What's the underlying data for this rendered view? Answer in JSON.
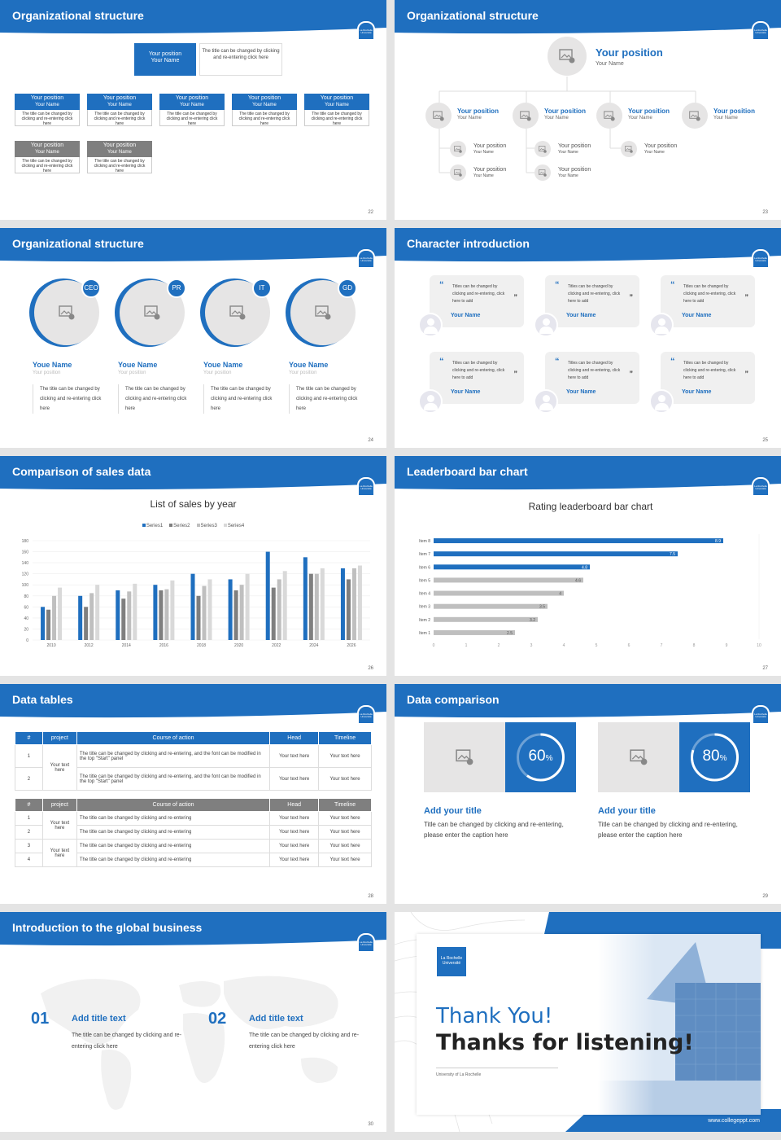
{
  "common": {
    "logo_text": "La Rochelle Université",
    "placeholder_icon": "image-placeholder-icon"
  },
  "s22": {
    "title": "Organizational structure",
    "page": "22",
    "top": {
      "position": "Your position",
      "name": "Your Name",
      "desc": "The title can be changed by clicking and re-entering click here"
    },
    "row1": [
      {
        "position": "Your position",
        "name": "Your Name",
        "desc": "The title can be changed by clicking and re-entering click here"
      },
      {
        "position": "Your position",
        "name": "Your Name",
        "desc": "The title can be changed by clicking and re-entering click here"
      },
      {
        "position": "Your position",
        "name": "Your Name",
        "desc": "The title can be changed by clicking and re-entering click here"
      },
      {
        "position": "Your position",
        "name": "Your Name",
        "desc": "The title can be changed by clicking and re-entering click here"
      },
      {
        "position": "Your position",
        "name": "Your Name",
        "desc": "The title can be changed by clicking and re-entering click here"
      }
    ],
    "row2": [
      {
        "position": "Your position",
        "name": "Your Name",
        "desc": "The title can be changed by clicking and re-entering click here"
      },
      {
        "position": "Your position",
        "name": "Your Name",
        "desc": "The title can be changed by clicking and re-entering click here"
      }
    ]
  },
  "s23": {
    "title": "Organizational structure",
    "page": "23",
    "top": {
      "position": "Your position",
      "name": "Your Name"
    },
    "level2": [
      {
        "position": "Your position",
        "name": "Your Name"
      },
      {
        "position": "Your position",
        "name": "Your Name"
      },
      {
        "position": "Your position",
        "name": "Your Name"
      },
      {
        "position": "Your position",
        "name": "Your Name"
      }
    ],
    "level3": [
      {
        "position": "Your position",
        "name": "Your Name"
      },
      {
        "position": "Your position",
        "name": "Your Name"
      },
      {
        "position": "Your position",
        "name": "Your Name"
      },
      {
        "position": "Your position",
        "name": "Your Name"
      },
      {
        "position": "Your position",
        "name": "Your Name"
      }
    ]
  },
  "s24": {
    "title": "Organizational structure",
    "page": "24",
    "members": [
      {
        "badge": "CEO",
        "name": "Youe Name",
        "position": "Your position",
        "desc": "The title can be changed by clicking and re-entering click here"
      },
      {
        "badge": "PR",
        "name": "Youe Name",
        "position": "Your position",
        "desc": "The title can be changed by clicking and re-entering click here"
      },
      {
        "badge": "IT",
        "name": "Youe Name",
        "position": "Your position",
        "desc": "The title can be changed by clicking and re-entering click here"
      },
      {
        "badge": "GD",
        "name": "Youe Name",
        "position": "Your position",
        "desc": "The title can be changed by clicking and re-entering click here"
      }
    ]
  },
  "s25": {
    "title": "Character introduction",
    "page": "25",
    "open_quote": "“",
    "close_quote": "”",
    "cards": [
      {
        "text": "Titles can be changed by clicking and re-entering, click here to add",
        "name": "Your Name"
      },
      {
        "text": "Titles can be changed by clicking and re-entering, click here to add",
        "name": "Your Name"
      },
      {
        "text": "Titles can be changed by clicking and re-entering, click here to add",
        "name": "Your Name"
      },
      {
        "text": "Titles can be changed by clicking and re-entering, click here to add",
        "name": "Your Name"
      },
      {
        "text": "Titles can be changed by clicking and re-entering, click here to add",
        "name": "Your Name"
      },
      {
        "text": "Titles can be changed by clicking and re-entering, click here to add",
        "name": "Your Name"
      }
    ]
  },
  "s26": {
    "title": "Comparison of sales data",
    "page": "26"
  },
  "s27": {
    "title": "Leaderboard bar chart",
    "page": "27"
  },
  "chart_data": [
    {
      "type": "bar",
      "title": "List of sales by year",
      "categories": [
        "2010",
        "2012",
        "2014",
        "2016",
        "2018",
        "2020",
        "2022",
        "2024",
        "2026"
      ],
      "series": [
        {
          "name": "Series1",
          "values": [
            60,
            80,
            90,
            100,
            120,
            110,
            160,
            150,
            130
          ]
        },
        {
          "name": "Series2",
          "values": [
            55,
            60,
            75,
            90,
            80,
            90,
            95,
            120,
            110
          ]
        },
        {
          "name": "Series3",
          "values": [
            80,
            85,
            88,
            92,
            98,
            100,
            110,
            120,
            130
          ]
        },
        {
          "name": "Series4",
          "values": [
            95,
            100,
            102,
            108,
            110,
            120,
            125,
            130,
            135
          ]
        }
      ],
      "ylim": [
        0,
        180
      ],
      "yticks": [
        0,
        20,
        40,
        60,
        80,
        100,
        120,
        140,
        160,
        180
      ],
      "legend": "top",
      "colors": [
        "#1f6fbf",
        "#7f7f7f",
        "#bfbfbf",
        "#d9d9d9"
      ]
    },
    {
      "type": "bar",
      "orientation": "horizontal",
      "title": "Rating leaderboard bar chart",
      "categories": [
        "Item 1",
        "Item 2",
        "Item 3",
        "Item 4",
        "Item 5",
        "Item 6",
        "Item 7",
        "Item 8"
      ],
      "values": [
        2.5,
        3.2,
        3.5,
        4,
        4.6,
        4.8,
        7.5,
        8.9
      ],
      "xlim": [
        0,
        10
      ],
      "xticks": [
        0,
        1,
        2,
        3,
        4,
        5,
        6,
        7,
        8,
        9,
        10
      ],
      "highlight_top": 3,
      "colors": [
        "#1f6fbf",
        "#bfbfbf"
      ]
    }
  ],
  "s28": {
    "title": "Data tables",
    "page": "28",
    "t1": {
      "headers": [
        "#",
        "project",
        "Course of action",
        "Head",
        "Timeline"
      ],
      "project": "Your text here",
      "rows": [
        {
          "n": "1",
          "action": "The title can be changed by clicking and re-entering, and the font can be modified in the top \"Start\" panel",
          "head": "Your text here",
          "time": "Your text here"
        },
        {
          "n": "2",
          "action": "The title can be changed by clicking and re-entering, and the font can be modified in the top \"Start\" panel",
          "head": "Your text here",
          "time": "Your text here"
        }
      ]
    },
    "t2": {
      "headers": [
        "#",
        "project",
        "Course of action",
        "Head",
        "Timeline"
      ],
      "project_a": "Your text here",
      "project_b": "Your text here",
      "rows": [
        {
          "n": "1",
          "action": "The title can be changed by clicking and re-entering",
          "head": "Your text here",
          "time": "Your text here"
        },
        {
          "n": "2",
          "action": "The title can be changed by clicking and re-entering",
          "head": "Your text here",
          "time": "Your text here"
        },
        {
          "n": "3",
          "action": "The title can be changed by clicking and re-entering",
          "head": "Your text here",
          "time": "Your text here"
        },
        {
          "n": "4",
          "action": "The title can be changed by clicking and re-entering",
          "head": "Your text here",
          "time": "Your text here"
        }
      ]
    }
  },
  "s29": {
    "title": "Data comparison",
    "page": "29",
    "items": [
      {
        "value": 60,
        "label": "60",
        "unit": "%",
        "title": "Add your title",
        "desc": "Title can be changed by clicking and re-entering, please enter the caption here"
      },
      {
        "value": 80,
        "label": "80",
        "unit": "%",
        "title": "Add your title",
        "desc": "Title can be changed by clicking and re-entering, please enter the caption here"
      }
    ]
  },
  "s30": {
    "title": "Introduction to the global business",
    "page": "30",
    "items": [
      {
        "num": "01",
        "title": "Add title text",
        "desc": "The title can be changed by clicking and re-entering click here"
      },
      {
        "num": "02",
        "title": "Add title text",
        "desc": "The title can be changed by clicking and re-entering click here"
      }
    ]
  },
  "s31": {
    "thank": "Thank You!",
    "thanks": "Thanks for listening!",
    "university": "University of La Rochelle",
    "website": "www.collegeppt.com",
    "logo": "La Rochelle Université"
  }
}
